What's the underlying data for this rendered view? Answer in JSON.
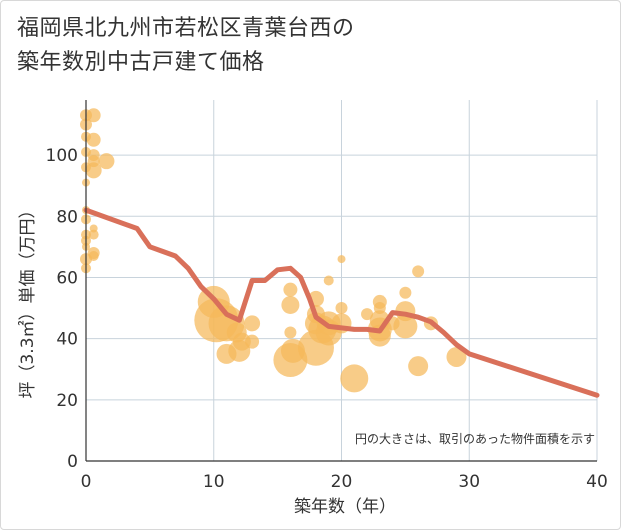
{
  "title_line1": "福岡県北九州市若松区青葉台西の",
  "title_line2": "築年数別中古戸建て価格",
  "chart_data": {
    "type": "scatter",
    "xlabel": "築年数（年）",
    "ylabel": "坪（3.3㎡）単価（万円）",
    "xlim": [
      0,
      40
    ],
    "ylim": [
      0,
      118
    ],
    "x_ticks": [
      0,
      10,
      20,
      30,
      40
    ],
    "y_ticks": [
      0,
      20,
      40,
      60,
      80,
      100
    ],
    "note": "円の大きさは、取引のあった物件面積を示す",
    "bubble_color": "#f5b85a",
    "line_color": "#d9705a",
    "grid": true,
    "points": [
      {
        "x": 0,
        "y": 113,
        "s": 6
      },
      {
        "x": 0,
        "y": 110,
        "s": 6
      },
      {
        "x": 0,
        "y": 106,
        "s": 5
      },
      {
        "x": 0,
        "y": 101,
        "s": 5
      },
      {
        "x": 0,
        "y": 96,
        "s": 5
      },
      {
        "x": 0,
        "y": 91,
        "s": 4
      },
      {
        "x": 0,
        "y": 82,
        "s": 4
      },
      {
        "x": 0,
        "y": 79,
        "s": 5
      },
      {
        "x": 0,
        "y": 74,
        "s": 5
      },
      {
        "x": 0,
        "y": 72,
        "s": 5
      },
      {
        "x": 0,
        "y": 70,
        "s": 4
      },
      {
        "x": 0,
        "y": 66,
        "s": 6
      },
      {
        "x": 0,
        "y": 63,
        "s": 5
      },
      {
        "x": 0.6,
        "y": 113,
        "s": 7
      },
      {
        "x": 0.6,
        "y": 105,
        "s": 7
      },
      {
        "x": 0.6,
        "y": 100,
        "s": 6
      },
      {
        "x": 0.6,
        "y": 98,
        "s": 6
      },
      {
        "x": 0.6,
        "y": 95,
        "s": 8
      },
      {
        "x": 0.6,
        "y": 76,
        "s": 4
      },
      {
        "x": 0.6,
        "y": 74,
        "s": 5
      },
      {
        "x": 0.6,
        "y": 68,
        "s": 6
      },
      {
        "x": 0.6,
        "y": 67,
        "s": 5
      },
      {
        "x": 1.6,
        "y": 98,
        "s": 8
      },
      {
        "x": 10,
        "y": 52,
        "s": 16
      },
      {
        "x": 10.2,
        "y": 46,
        "s": 22
      },
      {
        "x": 11,
        "y": 45,
        "s": 18
      },
      {
        "x": 11,
        "y": 35,
        "s": 10
      },
      {
        "x": 11.8,
        "y": 42,
        "s": 10
      },
      {
        "x": 12,
        "y": 36,
        "s": 11
      },
      {
        "x": 12.2,
        "y": 39,
        "s": 9
      },
      {
        "x": 13,
        "y": 45,
        "s": 8
      },
      {
        "x": 13,
        "y": 39,
        "s": 7
      },
      {
        "x": 16,
        "y": 56,
        "s": 7
      },
      {
        "x": 16,
        "y": 51,
        "s": 9
      },
      {
        "x": 16,
        "y": 42,
        "s": 6
      },
      {
        "x": 16,
        "y": 33,
        "s": 17
      },
      {
        "x": 16.2,
        "y": 36,
        "s": 12
      },
      {
        "x": 18,
        "y": 53,
        "s": 8
      },
      {
        "x": 18,
        "y": 48,
        "s": 9
      },
      {
        "x": 18,
        "y": 45,
        "s": 11
      },
      {
        "x": 18,
        "y": 37,
        "s": 18
      },
      {
        "x": 18.5,
        "y": 43,
        "s": 14
      },
      {
        "x": 19,
        "y": 59,
        "s": 5
      },
      {
        "x": 19,
        "y": 45,
        "s": 12
      },
      {
        "x": 19,
        "y": 42,
        "s": 13
      },
      {
        "x": 20,
        "y": 66,
        "s": 4
      },
      {
        "x": 20,
        "y": 50,
        "s": 6
      },
      {
        "x": 20,
        "y": 45,
        "s": 10
      },
      {
        "x": 21,
        "y": 27,
        "s": 14
      },
      {
        "x": 22,
        "y": 48,
        "s": 6
      },
      {
        "x": 23,
        "y": 52,
        "s": 7
      },
      {
        "x": 23,
        "y": 50,
        "s": 6
      },
      {
        "x": 23,
        "y": 46,
        "s": 10
      },
      {
        "x": 23,
        "y": 43,
        "s": 12
      },
      {
        "x": 23,
        "y": 41,
        "s": 11
      },
      {
        "x": 24,
        "y": 45,
        "s": 7
      },
      {
        "x": 25,
        "y": 55,
        "s": 6
      },
      {
        "x": 25,
        "y": 49,
        "s": 10
      },
      {
        "x": 25,
        "y": 44,
        "s": 12
      },
      {
        "x": 26,
        "y": 62,
        "s": 6
      },
      {
        "x": 26,
        "y": 31,
        "s": 10
      },
      {
        "x": 27,
        "y": 45,
        "s": 7
      },
      {
        "x": 29,
        "y": 34,
        "s": 10
      }
    ],
    "trend": [
      [
        0,
        82
      ],
      [
        4,
        76
      ],
      [
        4.5,
        73
      ],
      [
        5,
        70
      ],
      [
        6,
        68.5
      ],
      [
        7,
        67
      ],
      [
        8,
        63
      ],
      [
        9,
        57
      ],
      [
        10,
        53
      ],
      [
        11,
        48
      ],
      [
        12,
        46
      ],
      [
        13,
        59
      ],
      [
        14,
        59
      ],
      [
        15,
        62.5
      ],
      [
        16,
        63
      ],
      [
        16.8,
        60
      ],
      [
        17.5,
        53
      ],
      [
        18,
        47
      ],
      [
        19,
        44
      ],
      [
        20,
        43.5
      ],
      [
        21,
        43
      ],
      [
        22,
        43
      ],
      [
        23,
        42.5
      ],
      [
        24,
        48.5
      ],
      [
        25,
        48
      ],
      [
        26,
        47
      ],
      [
        27,
        45.5
      ],
      [
        28,
        42
      ],
      [
        29,
        38
      ],
      [
        30,
        35
      ],
      [
        40,
        21.5
      ]
    ]
  }
}
